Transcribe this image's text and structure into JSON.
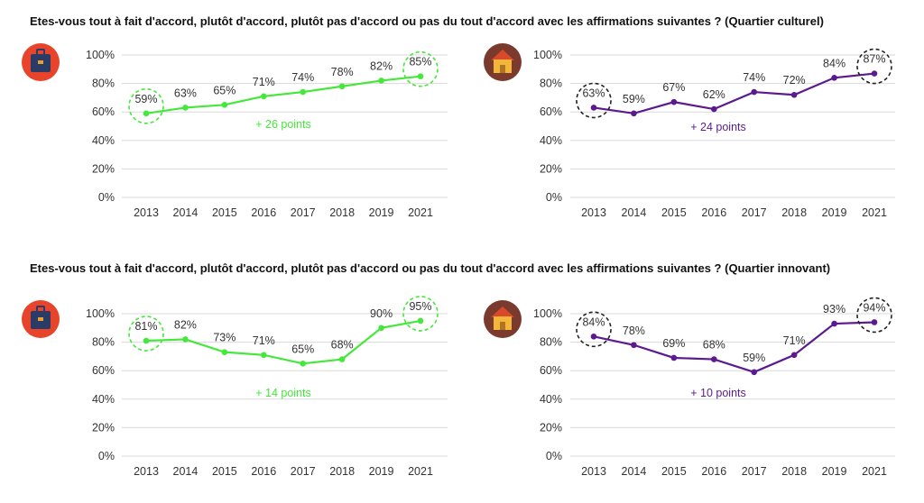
{
  "sections": [
    {
      "title": "Etes-vous tout à fait d'accord, plutôt d'accord, plutôt pas d'accord ou pas du tout d'accord avec les affirmations suivantes ? (Quartier culturel)"
    },
    {
      "title": "Etes-vous tout à fait d'accord, plutôt d'accord, plutôt pas d'accord ou pas du tout d'accord avec les affirmations suivantes ? (Quartier innovant)"
    }
  ],
  "icons": [
    {
      "name": "briefcase-icon",
      "bg": "#e8442b"
    },
    {
      "name": "house-icon",
      "bg": "#7a3b2e"
    }
  ],
  "chart_data": [
    {
      "type": "line",
      "categories": [
        "2013",
        "2014",
        "2015",
        "2016",
        "2017",
        "2018",
        "2019",
        "2021"
      ],
      "values": [
        59,
        63,
        65,
        71,
        74,
        78,
        82,
        85
      ],
      "labels": [
        "59%",
        "63%",
        "65%",
        "71%",
        "74%",
        "78%",
        "82%",
        "85%"
      ],
      "color": "#44e83a",
      "circle_color": "#44e83a",
      "highlight": [
        0,
        7
      ],
      "annotation": "+ 26 points",
      "yticks": [
        "0%",
        "20%",
        "40%",
        "60%",
        "80%",
        "100%"
      ],
      "ylim": [
        0,
        100
      ],
      "grid": true
    },
    {
      "type": "line",
      "categories": [
        "2013",
        "2014",
        "2015",
        "2016",
        "2017",
        "2018",
        "2019",
        "2021"
      ],
      "values": [
        63,
        59,
        67,
        62,
        74,
        72,
        84,
        87
      ],
      "labels": [
        "63%",
        "59%",
        "67%",
        "62%",
        "74%",
        "72%",
        "84%",
        "87%"
      ],
      "color": "#5b1a8f",
      "circle_color": "#222222",
      "highlight": [
        0,
        7
      ],
      "annotation": "+ 24 points",
      "yticks": [
        "0%",
        "20%",
        "40%",
        "60%",
        "80%",
        "100%"
      ],
      "ylim": [
        0,
        100
      ],
      "grid": true
    },
    {
      "type": "line",
      "categories": [
        "2013",
        "2014",
        "2015",
        "2016",
        "2017",
        "2018",
        "2019",
        "2021"
      ],
      "values": [
        81,
        82,
        73,
        71,
        65,
        68,
        90,
        95
      ],
      "labels": [
        "81%",
        "82%",
        "73%",
        "71%",
        "65%",
        "68%",
        "90%",
        "95%"
      ],
      "color": "#44e83a",
      "circle_color": "#44e83a",
      "highlight": [
        0,
        7
      ],
      "annotation": "+ 14 points",
      "yticks": [
        "0%",
        "20%",
        "40%",
        "60%",
        "80%",
        "100%"
      ],
      "ylim": [
        0,
        100
      ],
      "grid": true
    },
    {
      "type": "line",
      "categories": [
        "2013",
        "2014",
        "2015",
        "2016",
        "2017",
        "2018",
        "2019",
        "2021"
      ],
      "values": [
        84,
        78,
        69,
        68,
        59,
        71,
        93,
        94
      ],
      "labels": [
        "84%",
        "78%",
        "69%",
        "68%",
        "59%",
        "71%",
        "93%",
        "94%"
      ],
      "color": "#5b1a8f",
      "circle_color": "#222222",
      "highlight": [
        0,
        7
      ],
      "annotation": "+ 10 points",
      "yticks": [
        "0%",
        "20%",
        "40%",
        "60%",
        "80%",
        "100%"
      ],
      "ylim": [
        0,
        100
      ],
      "grid": true
    }
  ]
}
